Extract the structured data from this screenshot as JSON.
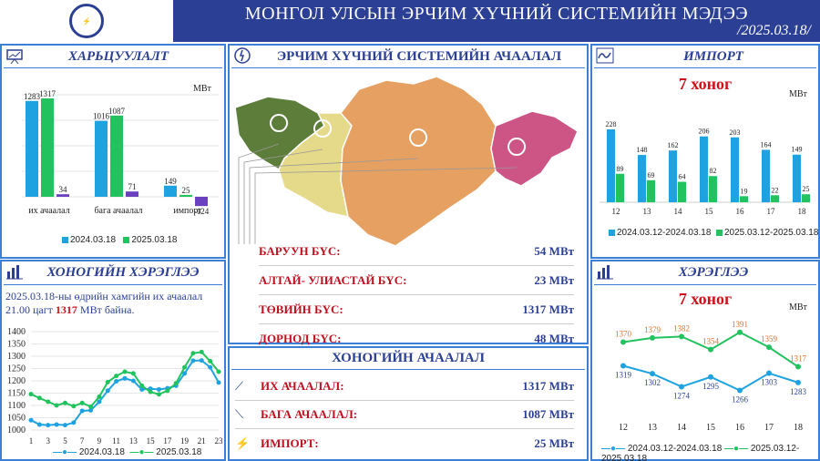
{
  "header": {
    "title": "МОНГОЛ УЛСЫН ЭРЧИМ ХҮЧНИЙ СИСТЕМИЙН МЭДЭЭ",
    "date": "/2025.03.18/",
    "brand_color": "#2b3f94"
  },
  "colors": {
    "s2024": "#1fa3e0",
    "s2025": "#22c35e",
    "import": "#6a3fc0",
    "highlight": "#d0111b",
    "line2025_bg": "#e2722e"
  },
  "generation": {
    "title": "ХАРЬЦУУЛАЛТ",
    "unit": "МВт",
    "legend": [
      "2024.03.18",
      "2025.03.18"
    ]
  },
  "map": {
    "title": "ЭРЧИМ ХҮЧНИЙ СИСТЕМИЙН АЧААЛАЛ",
    "rows": [
      {
        "label": "БАРУУН БҮС:",
        "value": "54 МВт"
      },
      {
        "label": "АЛТАЙ- УЛИАСТАЙ БҮС:",
        "value": "23 МВт"
      },
      {
        "label": "ТӨВИЙН БҮС:",
        "value": "1317 МВт"
      },
      {
        "label": "ДОРНОД БҮС:",
        "value": "48 МВт"
      }
    ],
    "region_colors": [
      "#5d7d3a",
      "#e5d98a",
      "#e6a062",
      "#cc5585"
    ]
  },
  "daily_load": {
    "title": "ХОНОГИЙН АЧААЛАЛ",
    "rows": [
      {
        "label": "ИХ АЧААЛАЛ:",
        "value": "1317 МВт",
        "icon": "trend-up-icon"
      },
      {
        "label": "БАГА АЧААЛАЛ:",
        "value": "1087 МВт",
        "icon": "trend-down-icon"
      },
      {
        "label": "ИМПОРТ:",
        "value": "25 МВт",
        "icon": "power-tower-icon"
      }
    ]
  },
  "import": {
    "title": "ИМПОРТ",
    "subtitle": "7 хоног",
    "unit": "МВт",
    "legend": [
      "2024.03.12-2024.03.18",
      "2025.03.12-2025.03.18"
    ]
  },
  "consumption_daily": {
    "title": "ХОНОГИЙН ХЭРЭГЛЭЭ",
    "note_prefix": "2025.03.18-ны өдрийн хамгийн их ачаалал 21.00 цагт",
    "note_value": "1317",
    "note_suffix": "МВт байна.",
    "legend": [
      "2024.03.18",
      "2025.03.18"
    ]
  },
  "consumption_week": {
    "title": "ХЭРЭГЛЭЭ",
    "subtitle": "7 хоног",
    "unit": "МВт",
    "legend": [
      "2024.03.12-2024.03.18",
      "2025.03.12-2025.03.18"
    ]
  },
  "chart_data": [
    {
      "type": "bar",
      "id": "generation",
      "categories": [
        "их ачаалал",
        "бага ачаалал",
        "импорт"
      ],
      "series": [
        {
          "name": "2024.03.18",
          "values": [
            1283,
            1016,
            149
          ]
        },
        {
          "name": "2025.03.18",
          "values": [
            1317,
            1087,
            25
          ]
        },
        {
          "name": "",
          "values": [
            34,
            71,
            -124
          ]
        }
      ],
      "ylabel": "МВт",
      "ylim": [
        -150,
        1400
      ],
      "grid": true
    },
    {
      "type": "bar",
      "id": "import",
      "categories": [
        "12",
        "13",
        "14",
        "15",
        "16",
        "17",
        "18"
      ],
      "series": [
        {
          "name": "2024.03.12-2024.03.18",
          "values": [
            228,
            148,
            162,
            206,
            203,
            164,
            149
          ]
        },
        {
          "name": "2025.03.12-2025.03.18",
          "values": [
            89,
            69,
            64,
            82,
            19,
            22,
            25
          ]
        }
      ],
      "ylabel": "МВт",
      "ylim": [
        0,
        250
      ]
    },
    {
      "type": "line",
      "id": "daily",
      "x": [
        1,
        2,
        3,
        4,
        5,
        6,
        7,
        8,
        9,
        10,
        11,
        12,
        13,
        14,
        15,
        16,
        17,
        18,
        19,
        20,
        21,
        22,
        23
      ],
      "xticks": [
        "1",
        "3",
        "5",
        "7",
        "9",
        "11",
        "13",
        "15",
        "17",
        "19",
        "21",
        "23"
      ],
      "series": [
        {
          "name": "2024.03.18",
          "values": [
            1040,
            1022,
            1020,
            1022,
            1020,
            1030,
            1078,
            1080,
            1115,
            1160,
            1198,
            1210,
            1200,
            1165,
            1168,
            1165,
            1170,
            1180,
            1230,
            1282,
            1283,
            1255,
            1193
          ]
        },
        {
          "name": "2025.03.18",
          "values": [
            1146,
            1130,
            1115,
            1100,
            1110,
            1097,
            1110,
            1095,
            1135,
            1195,
            1220,
            1237,
            1230,
            1180,
            1155,
            1145,
            1160,
            1190,
            1255,
            1312,
            1317,
            1280,
            1237
          ]
        }
      ],
      "yticks": [
        1000,
        1050,
        1100,
        1150,
        1200,
        1250,
        1300,
        1350,
        1400
      ],
      "ylim": [
        1000,
        1400
      ],
      "grid": true
    },
    {
      "type": "line",
      "id": "weekly",
      "categories": [
        "12",
        "13",
        "14",
        "15",
        "16",
        "17",
        "18"
      ],
      "series": [
        {
          "name": "2024.03.12-2024.03.18",
          "values": [
            1319,
            1302,
            1274,
            1295,
            1266,
            1303,
            1283
          ]
        },
        {
          "name": "2025.03.12-2025.03.18",
          "values": [
            1370,
            1379,
            1382,
            1354,
            1391,
            1359,
            1317
          ]
        }
      ],
      "ylabel": "МВт",
      "ylim": [
        1220,
        1420
      ]
    }
  ]
}
